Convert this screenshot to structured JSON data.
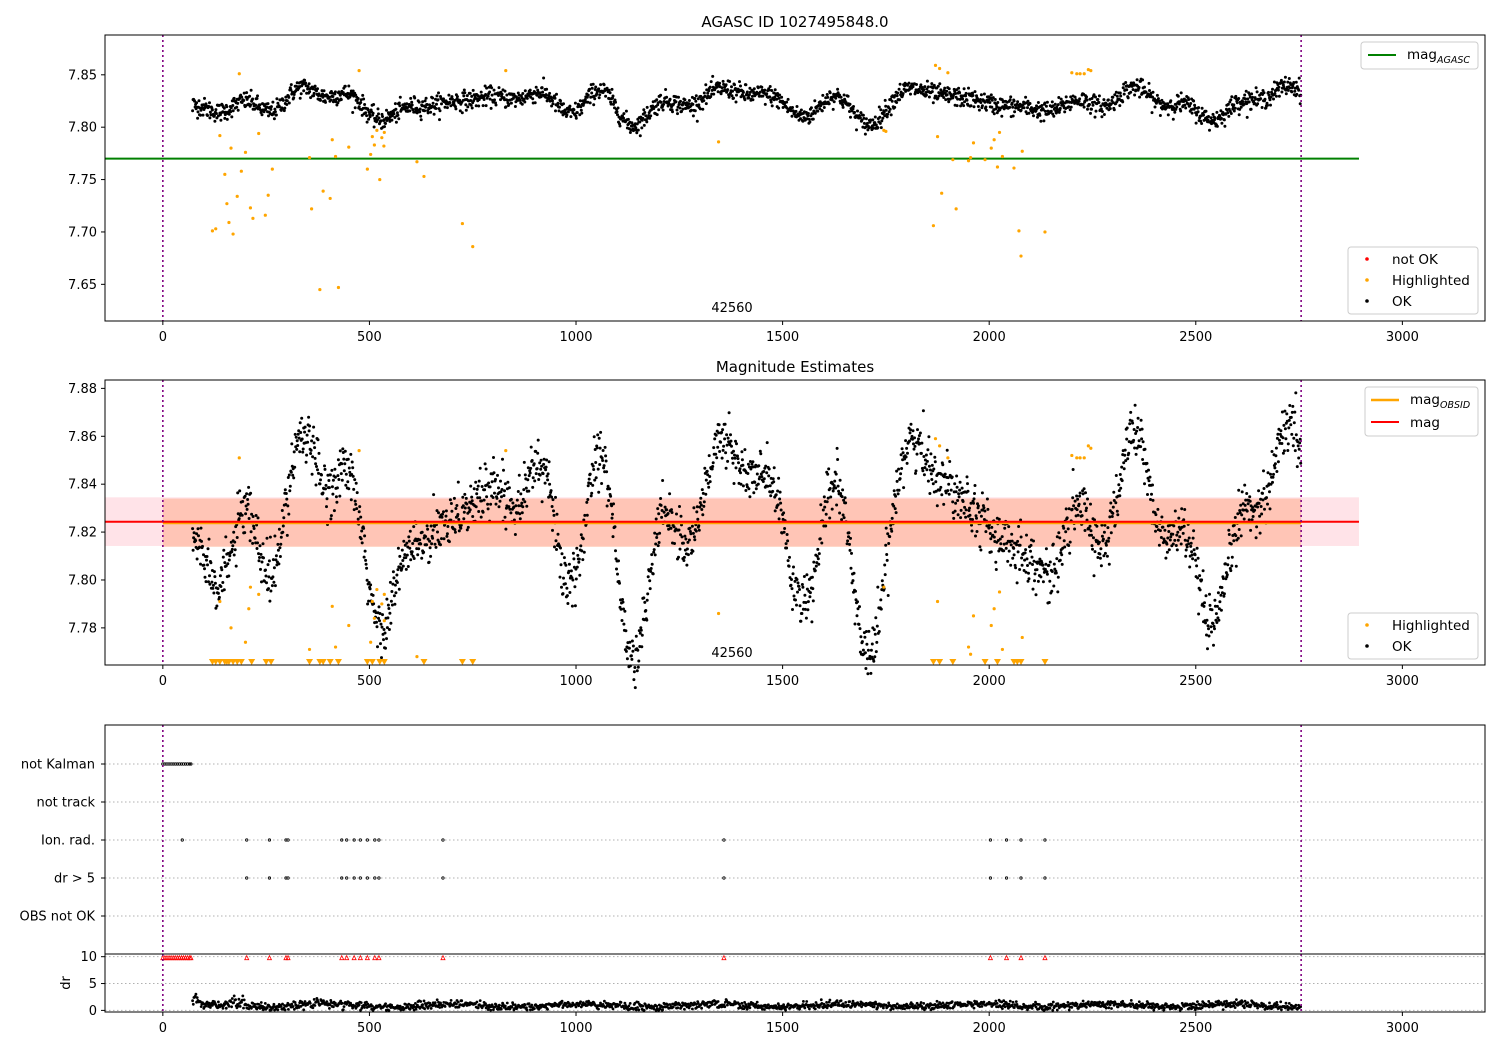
{
  "chart_data": [
    {
      "type": "scatter",
      "title": "AGASC ID 1027495848.0",
      "xlim": [
        -140,
        3200
      ],
      "ylim": [
        7.615,
        7.888
      ],
      "xticks": [
        0,
        500,
        1000,
        1500,
        2000,
        2500,
        3000
      ],
      "yticks": [
        7.65,
        7.7,
        7.75,
        7.8,
        7.85
      ],
      "xlabel": "",
      "ylabel": "",
      "obsid_boundaries": [
        0,
        2755
      ],
      "obsid_label": "42560",
      "obsid_label_x": 1377,
      "reference_lines": [
        {
          "name": "mag_AGASC",
          "y": 7.77,
          "x_range": [
            -140,
            2895
          ],
          "color": "#008000"
        }
      ],
      "series": [
        {
          "name": "not OK",
          "color": "#ff0000",
          "values": []
        },
        {
          "name": "Highlighted",
          "color": "#ffa500",
          "values": [
            [
              120,
              7.701
            ],
            [
              128,
              7.703
            ],
            [
              138,
              7.792
            ],
            [
              150,
              7.755
            ],
            [
              155,
              7.727
            ],
            [
              160,
              7.709
            ],
            [
              165,
              7.78
            ],
            [
              170,
              7.698
            ],
            [
              180,
              7.734
            ],
            [
              185,
              7.851
            ],
            [
              190,
              7.758
            ],
            [
              200,
              7.776
            ],
            [
              212,
              7.723
            ],
            [
              218,
              7.713
            ],
            [
              232,
              7.794
            ],
            [
              248,
              7.716
            ],
            [
              255,
              7.735
            ],
            [
              265,
              7.76
            ],
            [
              355,
              7.771
            ],
            [
              360,
              7.722
            ],
            [
              380,
              7.645
            ],
            [
              388,
              7.739
            ],
            [
              405,
              7.732
            ],
            [
              410,
              7.788
            ],
            [
              418,
              7.772
            ],
            [
              425,
              7.647
            ],
            [
              450,
              7.781
            ],
            [
              475,
              7.854
            ],
            [
              495,
              7.76
            ],
            [
              503,
              7.774
            ],
            [
              507,
              7.791
            ],
            [
              512,
              7.783
            ],
            [
              518,
              7.797
            ],
            [
              525,
              7.75
            ],
            [
              530,
              7.79
            ],
            [
              535,
              7.782
            ],
            [
              536,
              7.795
            ],
            [
              615,
              7.767
            ],
            [
              632,
              7.753
            ],
            [
              725,
              7.708
            ],
            [
              750,
              7.686
            ],
            [
              830,
              7.854
            ],
            [
              1345,
              7.786
            ],
            [
              1745,
              7.797
            ],
            [
              1750,
              7.796
            ],
            [
              1865,
              7.706
            ],
            [
              1870,
              7.859
            ],
            [
              1875,
              7.791
            ],
            [
              1880,
              7.856
            ],
            [
              1885,
              7.737
            ],
            [
              1900,
              7.852
            ],
            [
              1912,
              7.769
            ],
            [
              1920,
              7.722
            ],
            [
              1950,
              7.768
            ],
            [
              1955,
              7.771
            ],
            [
              1962,
              7.785
            ],
            [
              1990,
              7.769
            ],
            [
              2005,
              7.78
            ],
            [
              2012,
              7.788
            ],
            [
              2020,
              7.762
            ],
            [
              2025,
              7.795
            ],
            [
              2032,
              7.772
            ],
            [
              2060,
              7.761
            ],
            [
              2072,
              7.701
            ],
            [
              2077,
              7.677
            ],
            [
              2080,
              7.777
            ],
            [
              2135,
              7.7
            ],
            [
              2200,
              7.852
            ],
            [
              2212,
              7.851
            ],
            [
              2220,
              7.851
            ],
            [
              2230,
              7.851
            ],
            [
              2240,
              7.855
            ],
            [
              2246,
              7.854
            ]
          ]
        },
        {
          "name": "OK",
          "color": "#000000",
          "values": []
        }
      ],
      "ok_series_note_values": {
        "x_range": [
          70,
          2755
        ],
        "mean": 7.824,
        "spread": 0.012
      }
    },
    {
      "type": "scatter",
      "title": "Magnitude Estimates",
      "xlim": [
        -140,
        3200
      ],
      "ylim": [
        7.7645,
        7.8835
      ],
      "xticks": [
        0,
        500,
        1000,
        1500,
        2000,
        2500,
        3000
      ],
      "yticks": [
        7.78,
        7.8,
        7.82,
        7.84,
        7.86,
        7.88
      ],
      "xlabel": "",
      "ylabel": "",
      "obsid_boundaries": [
        0,
        2755
      ],
      "obsid_label": "42560",
      "obsid_label_x": 1377,
      "reference_lines": [
        {
          "name": "mag_OBSID",
          "y": 7.8238,
          "x_range": [
            0,
            2755
          ],
          "color": "#ffa500"
        },
        {
          "name": "mag",
          "y": 7.8243,
          "x_range": [
            -140,
            2895
          ],
          "color": "#ff0000"
        }
      ],
      "bands": [
        {
          "y_range": [
            7.8142,
            7.8345
          ],
          "x_range": [
            -140,
            2895
          ],
          "color": "#ffc0cb"
        },
        {
          "y_range": [
            7.8138,
            7.834
          ],
          "x_range": [
            0,
            2755
          ],
          "color": "#ffa07a"
        }
      ],
      "series": [
        {
          "name": "Highlighted",
          "color": "#ffa500",
          "values": [
            [
              138,
              7.791
            ],
            [
              165,
              7.78
            ],
            [
              185,
              7.851
            ],
            [
              200,
              7.774
            ],
            [
              208,
              7.788
            ],
            [
              212,
              7.797
            ],
            [
              232,
              7.794
            ],
            [
              355,
              7.771
            ],
            [
              410,
              7.789
            ],
            [
              418,
              7.772
            ],
            [
              450,
              7.781
            ],
            [
              475,
              7.854
            ],
            [
              503,
              7.774
            ],
            [
              507,
              7.791
            ],
            [
              512,
              7.784
            ],
            [
              518,
              7.796
            ],
            [
              530,
              7.79
            ],
            [
              536,
              7.794
            ],
            [
              536,
              7.783
            ],
            [
              615,
              7.768
            ],
            [
              830,
              7.854
            ],
            [
              1345,
              7.786
            ],
            [
              1745,
              7.797
            ],
            [
              1870,
              7.859
            ],
            [
              1875,
              7.791
            ],
            [
              1880,
              7.856
            ],
            [
              1900,
              7.851
            ],
            [
              1962,
              7.785
            ],
            [
              1950,
              7.772
            ],
            [
              1955,
              7.769
            ],
            [
              2005,
              7.781
            ],
            [
              2012,
              7.788
            ],
            [
              2025,
              7.795
            ],
            [
              2032,
              7.771
            ],
            [
              2080,
              7.776
            ],
            [
              2200,
              7.852
            ],
            [
              2212,
              7.851
            ],
            [
              2220,
              7.851
            ],
            [
              2230,
              7.851
            ],
            [
              2240,
              7.856
            ],
            [
              2246,
              7.855
            ]
          ]
        },
        {
          "name": "OK",
          "color": "#000000",
          "values": []
        }
      ],
      "below_range_markers_x": [
        120,
        128,
        138,
        150,
        155,
        160,
        170,
        180,
        190,
        215,
        250,
        262,
        355,
        380,
        388,
        405,
        425,
        495,
        507,
        525,
        536,
        632,
        725,
        750,
        1865,
        1880,
        1912,
        1990,
        2020,
        2060,
        2068,
        2077,
        2135
      ]
    },
    {
      "type": "scatter",
      "title": "",
      "xlim": [
        -140,
        3200
      ],
      "categories": [
        "not Kalman",
        "not track",
        "Ion. rad.",
        "dr > 5",
        "OBS not OK"
      ],
      "obsid_boundaries": [
        0,
        2755
      ],
      "flags": {
        "not Kalman": [
          0,
          5,
          10,
          15,
          20,
          25,
          30,
          35,
          40,
          45,
          50,
          55,
          60,
          65,
          68
        ],
        "not track": [],
        "Ion. rad.": [
          47,
          203,
          258,
          298,
          303,
          433,
          445,
          463,
          478,
          495,
          513,
          523,
          678,
          1358,
          2003,
          2042,
          2077,
          2135
        ],
        "dr > 5": [
          203,
          258,
          298,
          303,
          433,
          445,
          463,
          478,
          495,
          513,
          523,
          678,
          1358,
          2003,
          2042,
          2077,
          2135
        ],
        "OBS not OK": []
      }
    },
    {
      "type": "scatter",
      "title": "",
      "ylabel": "dr",
      "xlim": [
        -140,
        3200
      ],
      "ylim": [
        -0.3,
        10.5
      ],
      "xticks": [
        0,
        500,
        1000,
        1500,
        2000,
        2500,
        3000
      ],
      "yticks": [
        0,
        5,
        10
      ],
      "capped_markers_x": [
        0,
        5,
        10,
        15,
        20,
        25,
        30,
        35,
        40,
        45,
        50,
        55,
        60,
        65,
        68,
        203,
        258,
        298,
        303,
        433,
        445,
        463,
        478,
        495,
        513,
        523,
        678,
        1358,
        2003,
        2042,
        2077,
        2135
      ],
      "series": [
        {
          "name": "dr",
          "color": "#000000",
          "x_range": [
            70,
            2755
          ],
          "typical": [
            0,
            2
          ]
        }
      ]
    }
  ],
  "legend1": {
    "agasc_prefix": "mag",
    "agasc_sub": "AGASC",
    "not_ok": "not OK",
    "highlighted": "Highlighted",
    "ok": "OK"
  },
  "legend2": {
    "obsid_prefix": "mag",
    "obsid_sub": "OBSID",
    "mag": "mag",
    "highlighted": "Highlighted",
    "ok": "OK"
  },
  "colors": {
    "ok": "#000000",
    "highlighted": "#ffa500",
    "not_ok": "#ff0000",
    "agasc_line": "#008000",
    "mag_line": "#ff0000",
    "obsid_line": "#ffa500",
    "obsid_boundary": "#800080"
  }
}
